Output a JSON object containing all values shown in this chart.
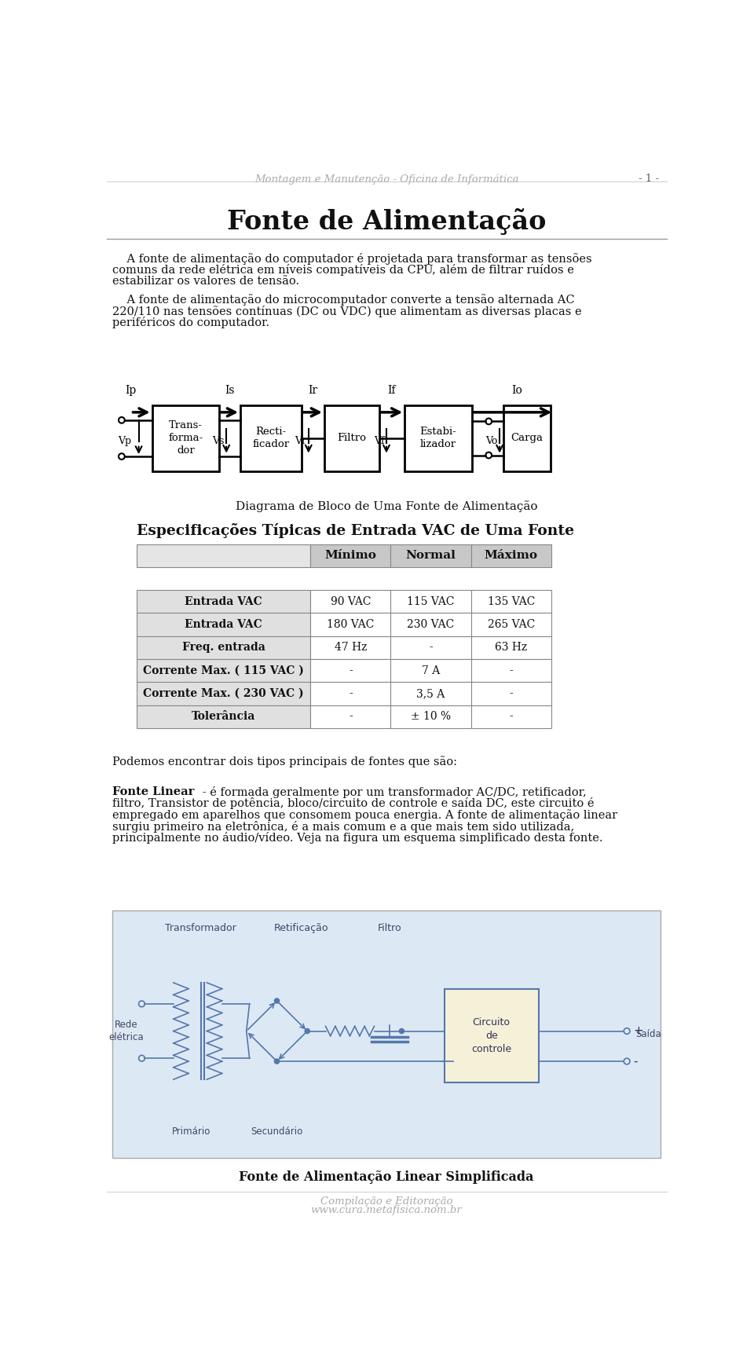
{
  "page_width": 9.6,
  "page_height": 17.3,
  "bg_color": "#ffffff",
  "header_text": "Montagem e Manutenção - Oficina de Informática",
  "page_number": "- 1 -",
  "main_title": "Fonte de Alimentação",
  "para1_line1": "    A fonte de alimentação do computador é projetada para transformar as tensões",
  "para1_line2": "comuns da rede elétrica em níveis compatíveis da CPU, além de filtrar ruídos e",
  "para1_line3": "estabilizar os valores de tensão.",
  "para2_line1": "    A fonte de alimentação do microcomputador converte a tensão alternada AC",
  "para2_line2": "220/110 nas tensões contínuas (DC ou VDC) que alimentam as diversas placas e",
  "para2_line3": "periféricos do computador.",
  "diagram_caption": "Diagrama de Bloco de Uma Fonte de Alimentação",
  "table_title": "Especificações Típicas de Entrada VAC de Uma Fonte",
  "table_headers": [
    "",
    "Mínimo",
    "Normal",
    "Máximo"
  ],
  "table_rows": [
    [
      "Entrada VAC",
      "90 VAC",
      "115 VAC",
      "135 VAC"
    ],
    [
      "Entrada VAC",
      "180 VAC",
      "230 VAC",
      "265 VAC"
    ],
    [
      "Freq. entrada",
      "47 Hz",
      "-",
      "63 Hz"
    ],
    [
      "Corrente Max. ( 115 VAC )",
      "-",
      "7 A",
      "-"
    ],
    [
      "Corrente Max. ( 230 VAC )",
      "-",
      "3,5 A",
      "-"
    ],
    [
      "Tolerância",
      "-",
      "± 10 %",
      "-"
    ]
  ],
  "para3": "Podemos encontrar dois tipos principais de fontes que são:",
  "para4_bold": "Fonte Linear",
  "para4_line1": "      - é formada geralmente por um transformador AC/DC, retificador,",
  "para4_line2": "filtro, Transistor de potência, bloco/circuito de controle e saída DC, este circuito é",
  "para4_line3": "empregado em aparelhos que consomem pouca energia. A fonte de alimentação linear",
  "para4_line4": "surgiu primeiro na eletrônica, é a mais comum e a que mais tem sido utilizada,",
  "para4_line5": "principalmente no áudio/vídeo. Veja na figura um esquema simplificado desta fonte.",
  "fig2_caption": "Fonte de Alimentação Linear Simplificada",
  "footer1": "Compilação e Editoração",
  "footer2": "www.cura.metafisica.nom.br",
  "header_color": "#aaaaaa",
  "table_header_bg": "#c8c8c8",
  "table_row0_bg": "#e0e0e0",
  "table_border_color": "#888888",
  "diagram_color": "#4a6fa5",
  "diagram_bg": "#dce9f5"
}
